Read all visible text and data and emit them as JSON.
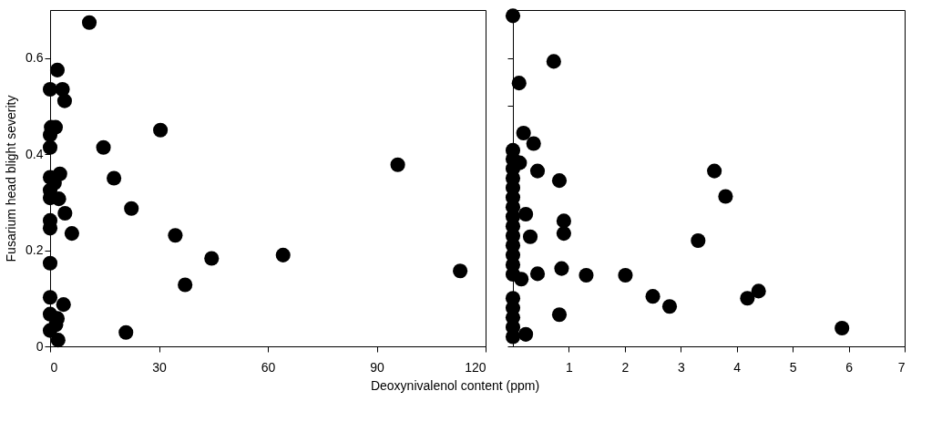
{
  "chart_data": [
    {
      "type": "scatter",
      "xlabel": "Deoxynivalenol content (ppm)",
      "ylabel": "Fusarium head blight severity",
      "xlim": [
        0,
        120
      ],
      "ylim": [
        0,
        0.7
      ],
      "xticks": [
        0,
        30,
        60,
        90,
        120
      ],
      "yticks": [
        0,
        0.2,
        0.4,
        0.6
      ],
      "grid": false,
      "marker": "circle",
      "series": [
        {
          "color": "#000000",
          "x": [
            10.8,
            2,
            0,
            3.4,
            4,
            30.4,
            1.5,
            0.3,
            0,
            0,
            14.7,
            17.6,
            2.7,
            0,
            1.2,
            0,
            0,
            2.4,
            4.1,
            22.4,
            0,
            0,
            6,
            34.5,
            44.5,
            0,
            37.2,
            0,
            3.7,
            0,
            2,
            1.6,
            0,
            2.2,
            20.9,
            64.2,
            95.8,
            113
          ],
          "values": [
            0.674,
            0.575,
            0.535,
            0.535,
            0.511,
            0.45,
            0.456,
            0.456,
            0.44,
            0.414,
            0.414,
            0.35,
            0.359,
            0.352,
            0.34,
            0.325,
            0.309,
            0.307,
            0.277,
            0.287,
            0.262,
            0.246,
            0.235,
            0.231,
            0.183,
            0.173,
            0.128,
            0.102,
            0.087,
            0.067,
            0.058,
            0.045,
            0.033,
            0.013,
            0.029,
            0.19,
            0.378,
            0.157
          ]
        }
      ]
    },
    {
      "type": "scatter",
      "xlim": [
        0,
        7
      ],
      "ylim": [
        0,
        0.7
      ],
      "xticks": [
        1,
        2,
        3,
        4,
        5,
        6,
        7
      ],
      "yticks": [
        {
          "value": 0,
          "label": null
        },
        {
          "value": 0.1,
          "label": null
        },
        {
          "value": 0.2,
          "label": null
        },
        {
          "value": 0.3,
          "label": null
        },
        {
          "value": 0.4,
          "label": null
        },
        {
          "value": 0.5,
          "label": null
        },
        {
          "value": 0.6,
          "label": null
        },
        {
          "value": 0.7,
          "label": null
        }
      ],
      "tick_labels": "x",
      "grid": false,
      "marker": "circle",
      "series": [
        {
          "color": "#000000",
          "x": [
            0,
            0.73,
            0.11,
            0.19,
            0.37,
            0,
            0.12,
            0,
            0,
            0,
            0,
            0,
            0,
            0,
            0,
            0,
            0,
            0,
            0,
            0,
            0,
            0,
            0,
            0,
            0,
            0.44,
            0.83,
            0.23,
            0.91,
            0.31,
            0.91,
            3.31,
            0.44,
            0.87,
            0.15,
            1.31,
            2.01,
            2.5,
            2.8,
            0.83,
            0.23,
            3.6,
            3.8,
            4.19,
            4.39,
            5.88
          ],
          "values": [
            0.688,
            0.593,
            0.548,
            0.444,
            0.422,
            0.408,
            0.382,
            0.39,
            0.37,
            0.35,
            0.33,
            0.31,
            0.29,
            0.27,
            0.25,
            0.23,
            0.21,
            0.19,
            0.17,
            0.15,
            0.1,
            0.08,
            0.06,
            0.04,
            0.02,
            0.365,
            0.345,
            0.275,
            0.261,
            0.228,
            0.235,
            0.22,
            0.151,
            0.162,
            0.14,
            0.148,
            0.148,
            0.104,
            0.083,
            0.066,
            0.025,
            0.365,
            0.312,
            0.1,
            0.115,
            0.038
          ]
        }
      ]
    }
  ]
}
